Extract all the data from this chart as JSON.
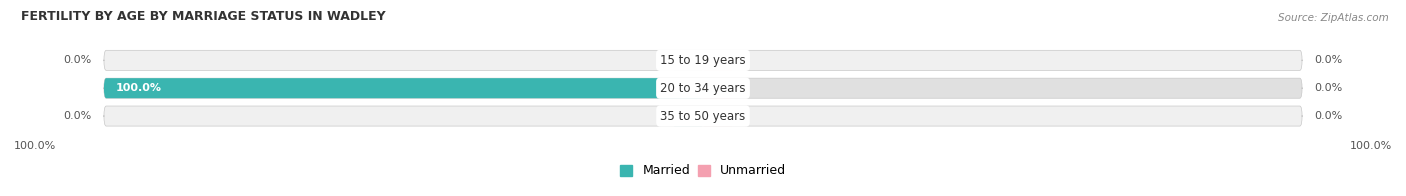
{
  "title": "FERTILITY BY AGE BY MARRIAGE STATUS IN WADLEY",
  "source": "Source: ZipAtlas.com",
  "categories": [
    "15 to 19 years",
    "20 to 34 years",
    "35 to 50 years"
  ],
  "married_values": [
    0.0,
    100.0,
    0.0
  ],
  "unmarried_values": [
    0.0,
    0.0,
    0.0
  ],
  "married_color": "#3ab5b0",
  "unmarried_color": "#f4a0b0",
  "bar_bg_color": "#d8d8d8",
  "row_bg_colors": [
    "#f0f0f0",
    "#e0e0e0",
    "#f0f0f0"
  ],
  "row_border_color": "#c8c8c8",
  "label_color": "#555555",
  "title_color": "#333333",
  "legend_labels": [
    "Married",
    "Unmarried"
  ],
  "bottom_left_label": "100.0%",
  "bottom_right_label": "100.0%",
  "xlim_half": 100
}
